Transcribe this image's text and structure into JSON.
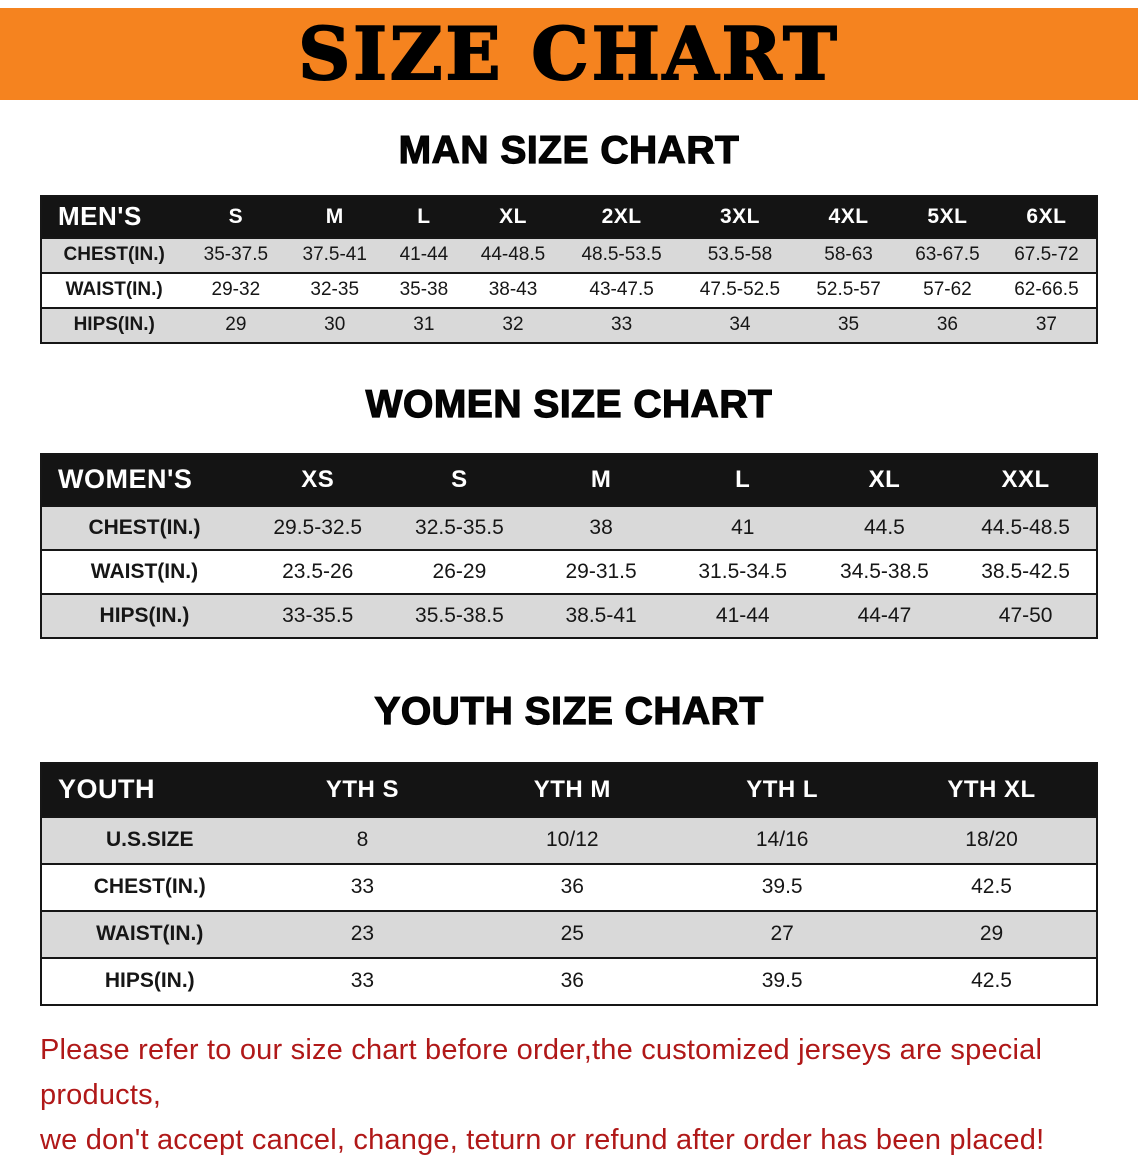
{
  "banner": {
    "title": "SIZE CHART"
  },
  "sections": [
    {
      "heading": "MAN SIZE CHART",
      "table_name": "mens",
      "header": [
        "MEN'S",
        "S",
        "M",
        "L",
        "XL",
        "2XL",
        "3XL",
        "4XL",
        "5XL",
        "6XL"
      ],
      "rows": [
        {
          "label": "CHEST(IN.)",
          "values": [
            "35-37.5",
            "37.5-41",
            "41-44",
            "44-48.5",
            "48.5-53.5",
            "53.5-58",
            "58-63",
            "63-67.5",
            "67.5-72"
          ]
        },
        {
          "label": "WAIST(IN.)",
          "values": [
            "29-32",
            "32-35",
            "35-38",
            "38-43",
            "43-47.5",
            "47.5-52.5",
            "52.5-57",
            "57-62",
            "62-66.5"
          ]
        },
        {
          "label": "HIPS(IN.)",
          "values": [
            "29",
            "30",
            "31",
            "32",
            "33",
            "34",
            "35",
            "36",
            "37"
          ]
        }
      ]
    },
    {
      "heading": "WOMEN SIZE CHART",
      "table_name": "womens",
      "header": [
        "WOMEN'S",
        "XS",
        "S",
        "M",
        "L",
        "XL",
        "XXL"
      ],
      "rows": [
        {
          "label": "CHEST(IN.)",
          "values": [
            "29.5-32.5",
            "32.5-35.5",
            "38",
            "41",
            "44.5",
            "44.5-48.5"
          ]
        },
        {
          "label": "WAIST(IN.)",
          "values": [
            "23.5-26",
            "26-29",
            "29-31.5",
            "31.5-34.5",
            "34.5-38.5",
            "38.5-42.5"
          ]
        },
        {
          "label": "HIPS(IN.)",
          "values": [
            "33-35.5",
            "35.5-38.5",
            "38.5-41",
            "41-44",
            "44-47",
            "47-50"
          ]
        }
      ]
    },
    {
      "heading": "YOUTH SIZE CHART",
      "table_name": "youth",
      "header": [
        "YOUTH",
        "YTH S",
        "YTH M",
        "YTH L",
        "YTH XL"
      ],
      "rows": [
        {
          "label": "U.S.SIZE",
          "values": [
            "8",
            "10/12",
            "14/16",
            "18/20"
          ]
        },
        {
          "label": "CHEST(IN.)",
          "values": [
            "33",
            "36",
            "39.5",
            "42.5"
          ]
        },
        {
          "label": "WAIST(IN.)",
          "values": [
            "23",
            "25",
            "27",
            "29"
          ]
        },
        {
          "label": "HIPS(IN.)",
          "values": [
            "33",
            "36",
            "39.5",
            "42.5"
          ]
        }
      ]
    }
  ],
  "footer": {
    "line1": "Please refer to our size chart before order,the customized jerseys are special products,",
    "line2": "we don't accept cancel, change, teturn or refund after order has been placed!"
  },
  "colors": {
    "banner_bg": "#f5831f",
    "table_header_bg": "#141414",
    "row_shade": "#d9d9d9",
    "footer_text": "#b01818"
  }
}
